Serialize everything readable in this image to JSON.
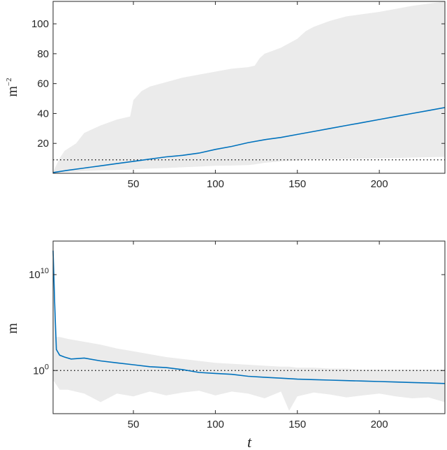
{
  "chart_data": [
    {
      "type": "line",
      "title": "",
      "xlabel": "",
      "ylabel": "m",
      "ylabel_superscript": "−2",
      "xlim": [
        1,
        240
      ],
      "ylim": [
        0,
        115
      ],
      "x_ticks": [
        50,
        100,
        150,
        200
      ],
      "x_tick_labels": [
        "50",
        "100",
        "150",
        "200"
      ],
      "y_ticks": [
        20,
        40,
        60,
        80,
        100
      ],
      "y_tick_labels": [
        "20",
        "40",
        "60",
        "80",
        "100"
      ],
      "grid": false,
      "reference_line": {
        "y": 9,
        "style": "dotted"
      },
      "band": {
        "x": [
          1,
          5,
          8,
          15,
          20,
          30,
          40,
          48,
          50,
          55,
          60,
          70,
          80,
          90,
          100,
          110,
          120,
          124,
          127,
          130,
          135,
          140,
          150,
          155,
          160,
          170,
          180,
          200,
          220,
          240
        ],
        "upper": [
          1,
          10,
          15,
          20,
          27,
          32,
          36,
          38,
          49,
          55,
          58,
          61,
          64,
          66,
          68,
          70,
          71,
          72,
          77,
          80,
          82,
          84,
          90,
          95,
          98,
          102,
          105,
          108,
          112,
          115
        ],
        "lower": [
          0,
          0.5,
          0.8,
          1,
          1.5,
          2,
          2.2,
          2.5,
          2.6,
          3,
          3.2,
          3.5,
          4,
          4.5,
          5,
          5.2,
          5.5,
          6,
          6.5,
          7,
          7.5,
          8,
          8.5,
          9,
          9.2,
          9.5,
          9.7,
          10,
          10.5,
          11
        ]
      },
      "series": [
        {
          "color": "#0072bd",
          "x": [
            1,
            10,
            20,
            30,
            40,
            50,
            60,
            70,
            80,
            90,
            100,
            110,
            120,
            130,
            140,
            150,
            160,
            170,
            180,
            190,
            200,
            210,
            220,
            230,
            240
          ],
          "y": [
            0.5,
            2,
            3.5,
            5,
            6.5,
            8,
            9.5,
            11,
            12,
            13.5,
            16,
            18,
            20.5,
            22.5,
            24,
            26,
            28,
            30,
            32,
            34,
            36,
            38,
            40,
            42,
            44
          ]
        }
      ]
    },
    {
      "type": "line",
      "title": "",
      "xlabel": "t",
      "ylabel": "m",
      "yscale": "log",
      "xlim": [
        1,
        240
      ],
      "ylim_log10": [
        -4.5,
        13.5
      ],
      "x_ticks": [
        50,
        100,
        150,
        200
      ],
      "x_tick_labels": [
        "50",
        "100",
        "150",
        "200"
      ],
      "y_ticks_log10": [
        0,
        10
      ],
      "y_tick_labels": [
        {
          "base": "10",
          "exp": "0"
        },
        {
          "base": "10",
          "exp": "10"
        }
      ],
      "grid": false,
      "reference_line": {
        "y": 1,
        "style": "dotted"
      },
      "band_log10": {
        "x": [
          1,
          3,
          5,
          10,
          20,
          30,
          40,
          50,
          60,
          70,
          80,
          90,
          100,
          110,
          120,
          130,
          140,
          145,
          150,
          160,
          170,
          180,
          190,
          200,
          210,
          220,
          230,
          240
        ],
        "upper": [
          11,
          3.5,
          3.5,
          3.3,
          3.0,
          2.7,
          2.3,
          2.0,
          1.7,
          1.4,
          1.2,
          1.0,
          0.8,
          0.7,
          0.6,
          0.5,
          0.4,
          0.4,
          0.3,
          0.3,
          0.2,
          0.2,
          0.1,
          0.1,
          0.1,
          0.1,
          0.1,
          0.1
        ],
        "lower": [
          -1.0,
          -1.5,
          -2.0,
          -2.0,
          -2.4,
          -3.3,
          -2.4,
          -2.7,
          -2.2,
          -2.6,
          -2.3,
          -2.1,
          -2.6,
          -2.2,
          -2.4,
          -2.9,
          -2.2,
          -4.2,
          -2.7,
          -2.3,
          -2.5,
          -2.8,
          -2.6,
          -2.4,
          -2.7,
          -2.9,
          -2.8,
          -3.3
        ]
      },
      "series": [
        {
          "color": "#0072bd",
          "x": [
            1,
            2,
            3,
            5,
            8,
            12,
            20,
            30,
            40,
            50,
            60,
            70,
            80,
            90,
            100,
            110,
            120,
            130,
            140,
            150,
            160,
            170,
            180,
            190,
            200,
            210,
            220,
            230,
            240
          ],
          "y_log10": [
            12.5,
            7.0,
            2.2,
            1.6,
            1.4,
            1.2,
            1.3,
            1.0,
            0.8,
            0.6,
            0.4,
            0.3,
            0.1,
            -0.2,
            -0.3,
            -0.4,
            -0.6,
            -0.7,
            -0.8,
            -0.9,
            -0.95,
            -1.0,
            -1.05,
            -1.1,
            -1.15,
            -1.2,
            -1.25,
            -1.3,
            -1.35
          ]
        }
      ]
    }
  ]
}
